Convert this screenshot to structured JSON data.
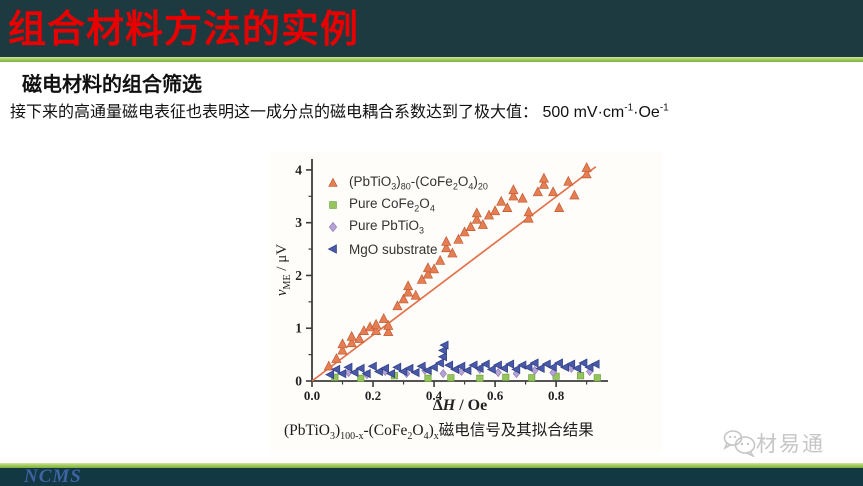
{
  "slide": {
    "title": "组合材料方法的实例",
    "subtitle": "磁电材料的组合筛选",
    "body_text": "接下来的高通量磁电表征也表明这一成分点的磁电耦合系数达到了极大值： 500 mV·cm^-1^·Oe^-1^",
    "caption": "(PbTiO~3~)~100-x~-(CoFe~2~O~4~)~x~磁电信号及其拟合结果",
    "watermark": "材易通",
    "footer_logo": "NCMS"
  },
  "colors": {
    "top_bar": "#1d3a40",
    "bottom_bar": "#123844",
    "title_red": "#e80000",
    "green_rule": "#a5cd5d",
    "axis": "#3c3c3c",
    "fit_line": "#e2714a",
    "watermark_gray": "#c6c6c6",
    "ncms_blue": "#3d63a3"
  },
  "chart_data": {
    "type": "scatter",
    "title": "",
    "xlabel": "Δ*H* / Oe",
    "ylabel": "*v*~ME~ / μV",
    "xlim": [
      0,
      0.97
    ],
    "ylim": [
      0,
      4.15
    ],
    "x_major_ticks": [
      0,
      0.2,
      0.4,
      0.6,
      0.8
    ],
    "x_tick_labels": [
      "0.0",
      "0.2",
      "0.4",
      "0.6",
      "0.8"
    ],
    "x_minor_step": 0.1,
    "y_major_ticks": [
      0,
      1,
      2,
      3,
      4
    ],
    "y_tick_labels": [
      "0",
      "1",
      "2",
      "3",
      "4"
    ],
    "y_minor_step": 0.5,
    "grid": false,
    "legend_position": "top-left",
    "fit_line": {
      "x1": 0,
      "y1": 0,
      "x2": 0.93,
      "y2": 4.06
    },
    "series": [
      {
        "name": "(PbTiO~3~)~80~-(CoFe~2~O~4~)~20~",
        "marker": "triangle-up",
        "color": "#e67e54",
        "edge": "#c25c33",
        "size": 5,
        "points": [
          [
            0.055,
            0.28
          ],
          [
            0.08,
            0.42
          ],
          [
            0.1,
            0.58
          ],
          [
            0.1,
            0.7
          ],
          [
            0.13,
            0.72
          ],
          [
            0.13,
            0.84
          ],
          [
            0.155,
            0.8
          ],
          [
            0.17,
            0.95
          ],
          [
            0.19,
            1.02
          ],
          [
            0.21,
            0.95
          ],
          [
            0.21,
            1.07
          ],
          [
            0.235,
            1.18
          ],
          [
            0.25,
            0.93
          ],
          [
            0.25,
            1.05
          ],
          [
            0.28,
            1.42
          ],
          [
            0.3,
            1.55
          ],
          [
            0.315,
            1.68
          ],
          [
            0.315,
            1.8
          ],
          [
            0.34,
            1.62
          ],
          [
            0.36,
            1.92
          ],
          [
            0.38,
            2.02
          ],
          [
            0.38,
            2.14
          ],
          [
            0.4,
            2.12
          ],
          [
            0.42,
            2.28
          ],
          [
            0.44,
            2.52
          ],
          [
            0.44,
            2.64
          ],
          [
            0.46,
            2.42
          ],
          [
            0.48,
            2.68
          ],
          [
            0.5,
            2.82
          ],
          [
            0.52,
            2.92
          ],
          [
            0.54,
            3.06
          ],
          [
            0.54,
            3.18
          ],
          [
            0.56,
            2.96
          ],
          [
            0.58,
            3.14
          ],
          [
            0.6,
            3.22
          ],
          [
            0.62,
            3.4
          ],
          [
            0.64,
            3.28
          ],
          [
            0.66,
            3.5
          ],
          [
            0.66,
            3.62
          ],
          [
            0.69,
            3.46
          ],
          [
            0.71,
            3.08
          ],
          [
            0.71,
            3.2
          ],
          [
            0.74,
            3.58
          ],
          [
            0.76,
            3.72
          ],
          [
            0.76,
            3.84
          ],
          [
            0.79,
            3.58
          ],
          [
            0.81,
            3.28
          ],
          [
            0.84,
            3.78
          ],
          [
            0.86,
            3.52
          ],
          [
            0.9,
            3.92
          ],
          [
            0.9,
            4.04
          ]
        ]
      },
      {
        "name": "Pure CoFe~2~O~4~",
        "marker": "square",
        "color": "#95c45c",
        "edge": "#6fa33c",
        "size": 3.2,
        "points": [
          [
            0.075,
            0.07
          ],
          [
            0.16,
            0.05
          ],
          [
            0.27,
            0.1
          ],
          [
            0.38,
            0.05
          ],
          [
            0.455,
            0.06
          ],
          [
            0.55,
            0.05
          ],
          [
            0.635,
            0.07
          ],
          [
            0.72,
            0.06
          ],
          [
            0.8,
            0.09
          ],
          [
            0.88,
            0.1
          ],
          [
            0.935,
            0.06
          ]
        ]
      },
      {
        "name": "Pure PbTiO~3~",
        "marker": "diamond",
        "color": "#b5a3d6",
        "edge": "#8f7cb8",
        "size": 4,
        "points": [
          [
            0.12,
            0.16
          ],
          [
            0.18,
            0.12
          ],
          [
            0.24,
            0.18
          ],
          [
            0.31,
            0.14
          ],
          [
            0.37,
            0.2
          ],
          [
            0.43,
            0.14
          ],
          [
            0.49,
            0.18
          ],
          [
            0.55,
            0.22
          ],
          [
            0.61,
            0.16
          ],
          [
            0.67,
            0.14
          ],
          [
            0.73,
            0.2
          ],
          [
            0.79,
            0.16
          ],
          [
            0.85,
            0.24
          ],
          [
            0.91,
            0.18
          ]
        ]
      },
      {
        "name": "MgO substrate",
        "marker": "triangle-left",
        "color": "#4a58a8",
        "edge": "#2e3f85",
        "size": 4.5,
        "points": [
          [
            0.06,
            0.12
          ],
          [
            0.08,
            0.22
          ],
          [
            0.1,
            0.14
          ],
          [
            0.12,
            0.26
          ],
          [
            0.14,
            0.16
          ],
          [
            0.16,
            0.24
          ],
          [
            0.18,
            0.14
          ],
          [
            0.2,
            0.28
          ],
          [
            0.22,
            0.18
          ],
          [
            0.24,
            0.24
          ],
          [
            0.26,
            0.14
          ],
          [
            0.28,
            0.26
          ],
          [
            0.3,
            0.18
          ],
          [
            0.32,
            0.24
          ],
          [
            0.34,
            0.16
          ],
          [
            0.36,
            0.28
          ],
          [
            0.38,
            0.2
          ],
          [
            0.4,
            0.26
          ],
          [
            0.42,
            0.34
          ],
          [
            0.43,
            0.46
          ],
          [
            0.43,
            0.58
          ],
          [
            0.435,
            0.68
          ],
          [
            0.45,
            0.3
          ],
          [
            0.47,
            0.22
          ],
          [
            0.49,
            0.28
          ],
          [
            0.51,
            0.2
          ],
          [
            0.53,
            0.3
          ],
          [
            0.55,
            0.24
          ],
          [
            0.57,
            0.32
          ],
          [
            0.59,
            0.22
          ],
          [
            0.61,
            0.3
          ],
          [
            0.63,
            0.24
          ],
          [
            0.65,
            0.32
          ],
          [
            0.67,
            0.22
          ],
          [
            0.69,
            0.3
          ],
          [
            0.71,
            0.26
          ],
          [
            0.73,
            0.34
          ],
          [
            0.75,
            0.24
          ],
          [
            0.77,
            0.32
          ],
          [
            0.79,
            0.26
          ],
          [
            0.81,
            0.34
          ],
          [
            0.83,
            0.26
          ],
          [
            0.85,
            0.32
          ],
          [
            0.87,
            0.24
          ],
          [
            0.89,
            0.34
          ],
          [
            0.91,
            0.26
          ],
          [
            0.93,
            0.32
          ]
        ]
      }
    ]
  }
}
